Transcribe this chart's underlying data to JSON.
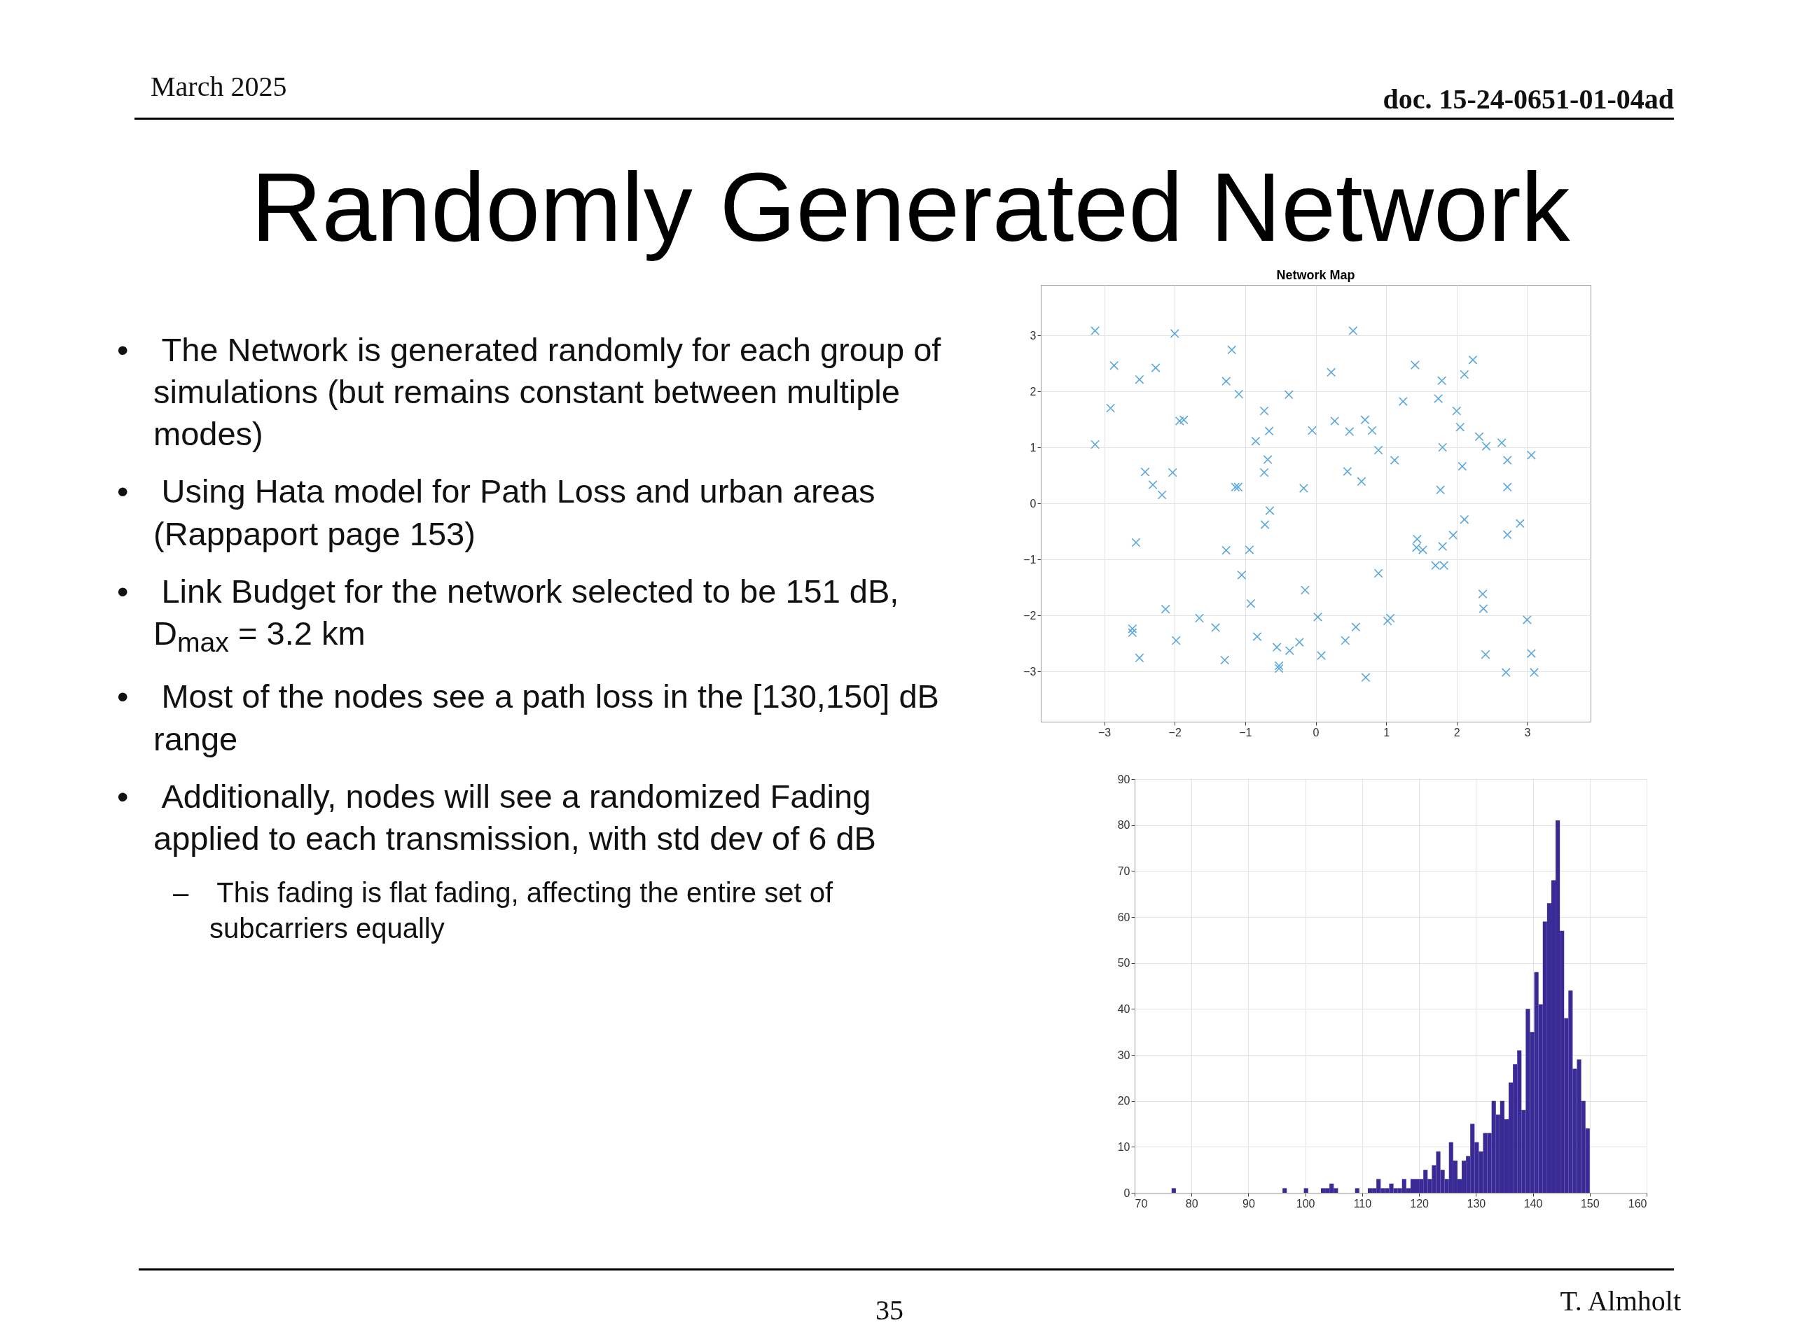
{
  "chart_data": [
    {
      "type": "other",
      "title": "Randomly Generated Network",
      "annotations": [
        "March 2025",
        "doc. 15-24-0651-01-04ad",
        "• The Network is generated randomly for each group of simulations (but remains constant between multiple modes)",
        "• Using Hata model for Path Loss and urban areas (Rappaport page 153)",
        "• Link Budget for the network selected to be 151 dB, D$_{max}$ = 3.2 km",
        "• Most of the nodes see a path loss in the [130,150] dB range",
        "• Additionally, nodes will see a randomized Fading applied to each transmission, with std dev of 6 dB",
        "– This fading is flat fading, affecting the entire set of subcarriers equally",
        "35",
        "T. Almholt"
      ]
    },
    {
      "type": "scatter",
      "title": "Network Map",
      "marker": "cross",
      "grid": true,
      "xlim": [
        -3.9,
        3.9
      ],
      "ylim": [
        -3.9,
        3.9
      ],
      "xticks": [
        -3,
        -2,
        -1,
        0,
        1,
        2,
        3
      ],
      "yticks": [
        -3,
        -2,
        -1,
        0,
        1,
        2,
        3
      ],
      "series": [
        {
          "color": "#5aa7dc",
          "x": [
            -3.13,
            -2.0,
            -1.19,
            -2.86,
            -2.27,
            -2.5,
            -1.27,
            -1.09,
            -0.38,
            -2.91,
            -0.73,
            -1.93,
            -1.87,
            -0.66,
            -0.05,
            -0.85,
            -3.13,
            -0.68,
            -2.42,
            -2.03,
            -0.73,
            -2.31,
            -1.14,
            -1.1,
            -0.17,
            -2.18,
            -0.65,
            -0.72,
            -2.55,
            -1.27,
            -0.94,
            -1.05,
            -0.15,
            -0.92,
            -2.13,
            0.03,
            -1.65,
            -2.6,
            -2.6,
            -1.42,
            -1.98,
            -0.83,
            -0.23,
            -0.55,
            -0.37,
            -2.5,
            -1.29,
            -0.52,
            -0.52,
            0.08,
            0.53,
            0.22,
            1.41,
            2.23,
            2.11,
            1.79,
            1.24,
            1.74,
            2.0,
            2.05,
            0.27,
            0.48,
            0.7,
            0.8,
            2.32,
            2.42,
            2.64,
            1.8,
            0.89,
            1.12,
            2.72,
            3.06,
            0.45,
            2.08,
            0.65,
            1.77,
            2.72,
            2.11,
            2.9,
            1.95,
            2.72,
            1.44,
            1.43,
            1.52,
            1.8,
            1.7,
            1.82,
            0.89,
            2.37,
            2.38,
            1.02,
            1.06,
            0.57,
            0.42,
            3.0,
            2.41,
            3.06,
            2.7,
            3.1,
            0.71
          ],
          "values": [
            3.08,
            3.03,
            2.74,
            2.46,
            2.42,
            2.21,
            2.18,
            1.95,
            1.94,
            1.7,
            1.65,
            1.47,
            1.49,
            1.29,
            1.3,
            1.11,
            1.05,
            0.78,
            0.56,
            0.55,
            0.55,
            0.33,
            0.29,
            0.29,
            0.27,
            0.15,
            -0.13,
            -0.38,
            -0.7,
            -0.84,
            -0.83,
            -1.28,
            -1.55,
            -1.79,
            -1.89,
            -2.03,
            -2.05,
            -2.24,
            -2.31,
            -2.22,
            -2.45,
            -2.38,
            -2.48,
            -2.57,
            -2.63,
            -2.76,
            -2.8,
            -2.9,
            -2.95,
            -2.72,
            3.08,
            2.34,
            2.47,
            2.56,
            2.3,
            2.19,
            1.82,
            1.87,
            1.65,
            1.36,
            1.47,
            1.28,
            1.49,
            1.3,
            1.19,
            1.02,
            1.08,
            1.0,
            0.95,
            0.77,
            0.77,
            0.86,
            0.57,
            0.66,
            0.39,
            0.24,
            0.29,
            -0.29,
            -0.36,
            -0.57,
            -0.56,
            -0.64,
            -0.79,
            -0.83,
            -0.77,
            -1.11,
            -1.11,
            -1.25,
            -1.62,
            -1.88,
            -2.1,
            -2.05,
            -2.21,
            -2.45,
            -2.08,
            -2.7,
            -2.68,
            -3.02,
            -3.02,
            -3.11
          ]
        }
      ]
    },
    {
      "type": "histogram",
      "grid": true,
      "color": "#3a2a96",
      "xlim": [
        70,
        160
      ],
      "xticks": [
        70,
        80,
        90,
        100,
        110,
        120,
        130,
        140,
        150,
        160
      ],
      "ylim": [
        0,
        90
      ],
      "yticks": [
        0,
        10,
        20,
        30,
        40,
        50,
        60,
        70,
        80,
        90
      ],
      "bins": [
        76.5,
        77.25,
        78,
        78.75,
        79.5,
        80.25,
        81,
        81.75,
        82.5,
        83.25,
        84,
        84.75,
        85.5,
        86.25,
        87,
        87.75,
        88.5,
        89.25,
        90,
        90.75,
        91.5,
        92.25,
        93,
        93.75,
        94.5,
        95.25,
        96,
        96.75,
        97.5,
        98.25,
        99,
        99.75,
        100.5,
        101.25,
        102,
        102.75,
        103.5,
        104.25,
        105,
        105.75,
        106.5,
        107.25,
        108,
        108.75,
        109.5,
        110.25,
        111,
        111.75,
        112.5,
        113.25,
        114,
        114.75,
        115.5,
        116.25,
        117,
        117.75,
        118.5,
        119.25,
        120,
        120.75,
        121.5,
        122.25,
        123,
        123.75,
        124.5,
        125.25,
        126,
        126.75,
        127.5,
        128.25,
        129,
        129.75,
        130.5,
        131.25,
        132,
        132.75,
        133.5,
        134.25,
        135,
        135.75,
        136.5,
        137.25,
        138,
        138.75,
        139.5,
        140.25,
        141,
        141.75,
        142.5,
        143.25,
        144,
        144.75,
        145.5,
        146.25,
        147,
        147.75,
        148.5,
        149.25,
        150
      ],
      "values": [
        1,
        0,
        0,
        0,
        0,
        0,
        0,
        0,
        0,
        0,
        0,
        0,
        0,
        0,
        0,
        0,
        0,
        0,
        0,
        0,
        0,
        0,
        0,
        0,
        0,
        0,
        1,
        0,
        0,
        0,
        0,
        1,
        0,
        0,
        0,
        1,
        1,
        2,
        1,
        0,
        0,
        0,
        0,
        1,
        0,
        0,
        1,
        1,
        3,
        1,
        1,
        2,
        1,
        1,
        3,
        1,
        3,
        3,
        3,
        5,
        3,
        6,
        9,
        5,
        3,
        11,
        7,
        3,
        7,
        8,
        15,
        11,
        9,
        13,
        13,
        20,
        17,
        20,
        16,
        24,
        28,
        31,
        18,
        40,
        35,
        48,
        41,
        59,
        63,
        68,
        81,
        57,
        38,
        44,
        27,
        29,
        20,
        14
      ]
    }
  ]
}
